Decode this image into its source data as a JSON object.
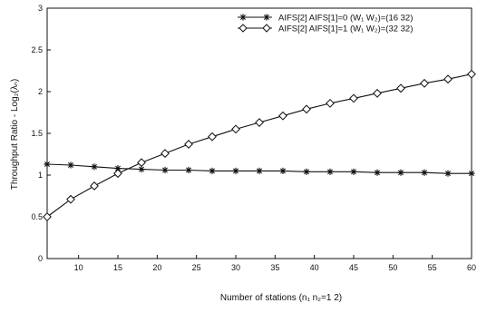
{
  "chart_data": {
    "type": "line",
    "title": "",
    "xlabel": "Number of stations (n₁ n₂=1 2)",
    "ylabel": "Throughput Ratio - Log₂(λₙ)",
    "xlim": [
      6,
      60
    ],
    "ylim": [
      0,
      3
    ],
    "xticks": [
      "10",
      "15",
      "20",
      "25",
      "30",
      "35",
      "40",
      "45",
      "50",
      "55",
      "60"
    ],
    "yticks": [
      "0",
      "0.5",
      "1",
      "1.5",
      "2",
      "2.5",
      "3"
    ],
    "grid": false,
    "legend_position": "top-right",
    "series": [
      {
        "name": "AIFS[2] AIFS[1]=0  (W₁ W₂)=(16 32)",
        "marker": "asterisk",
        "x": [
          6,
          9,
          12,
          15,
          18,
          21,
          24,
          27,
          30,
          33,
          36,
          39,
          42,
          45,
          48,
          51,
          54,
          57,
          60
        ],
        "values": [
          1.13,
          1.12,
          1.1,
          1.08,
          1.07,
          1.06,
          1.06,
          1.05,
          1.05,
          1.05,
          1.05,
          1.04,
          1.04,
          1.04,
          1.03,
          1.03,
          1.03,
          1.02,
          1.02
        ]
      },
      {
        "name": "AIFS[2] AIFS[1]=1  (W₁ W₂)=(32 32)",
        "marker": "diamond",
        "x": [
          6,
          9,
          12,
          15,
          18,
          21,
          24,
          27,
          30,
          33,
          36,
          39,
          42,
          45,
          48,
          51,
          54,
          57,
          60
        ],
        "values": [
          0.5,
          0.71,
          0.87,
          1.02,
          1.15,
          1.26,
          1.37,
          1.46,
          1.55,
          1.63,
          1.71,
          1.79,
          1.86,
          1.92,
          1.98,
          2.04,
          2.1,
          2.15,
          2.21
        ]
      }
    ]
  }
}
